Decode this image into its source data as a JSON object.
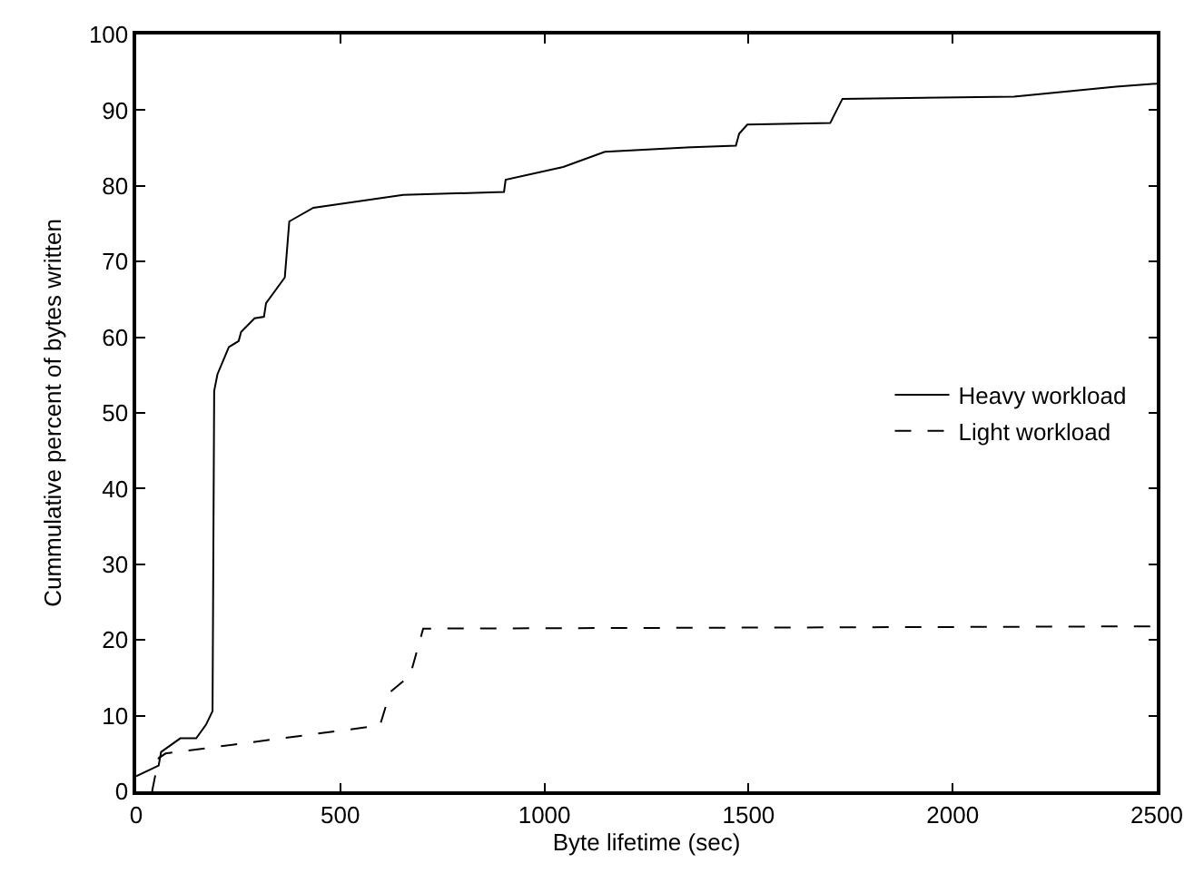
{
  "chart_data": {
    "type": "line",
    "xlabel": "Byte lifetime (sec)",
    "ylabel": "Cummulative percent of bytes written",
    "xlim": [
      0,
      2500
    ],
    "xticks": [
      0,
      500,
      1000,
      1500,
      2000,
      2500
    ],
    "ylim": [
      0,
      100
    ],
    "yticks": [
      0,
      10,
      20,
      30,
      40,
      50,
      60,
      70,
      80,
      90,
      100
    ],
    "legend": "right",
    "marker": "none",
    "series": [
      {
        "name": "Heavy workload",
        "color": "#000000",
        "line_style": "solid",
        "x": [
          0,
          55,
          61,
          108,
          147,
          171,
          187,
          191,
          199,
          227,
          251,
          257,
          290,
          313,
          318,
          364,
          375,
          434,
          654,
          901,
          905,
          1046,
          1148,
          1359,
          1469,
          1477,
          1497,
          1700,
          1730,
          2150,
          2400,
          2500
        ],
        "values": [
          2,
          3.4,
          5.2,
          7.0,
          7.0,
          8.8,
          10.6,
          52.9,
          55.1,
          58.7,
          59.5,
          60.7,
          62.5,
          62.7,
          64.5,
          67.9,
          75.3,
          77.1,
          78.8,
          79.2,
          80.8,
          82.5,
          84.5,
          85.1,
          85.3,
          86.9,
          88.1,
          88.3,
          91.5,
          91.8,
          93.1,
          93.5
        ]
      },
      {
        "name": "Light workload",
        "color": "#000000",
        "line_style": "dashed",
        "x": [
          39,
          55,
          72,
          597,
          622,
          671,
          703,
          2500
        ],
        "values": [
          0,
          4.4,
          5.0,
          8.7,
          13.1,
          15.3,
          21.5,
          21.8
        ]
      }
    ]
  }
}
